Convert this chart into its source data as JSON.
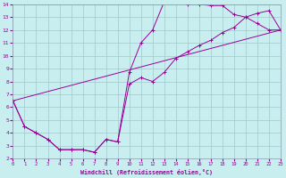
{
  "xlabel": "Windchill (Refroidissement éolien,°C)",
  "xlim": [
    0,
    23
  ],
  "ylim": [
    2,
    14
  ],
  "xticks": [
    0,
    1,
    2,
    3,
    4,
    5,
    6,
    7,
    8,
    9,
    10,
    11,
    12,
    13,
    14,
    15,
    16,
    17,
    18,
    19,
    20,
    21,
    22,
    23
  ],
  "yticks": [
    2,
    3,
    4,
    5,
    6,
    7,
    8,
    9,
    10,
    11,
    12,
    13,
    14
  ],
  "bg_color": "#c8eef0",
  "line_color": "#990099",
  "grid_color": "#a0c8cc",
  "curve1_x": [
    0,
    1,
    2,
    3,
    4,
    5,
    6,
    7,
    8,
    9,
    10,
    11,
    12,
    13,
    14,
    15,
    16,
    17,
    18,
    19,
    20,
    21,
    22,
    23
  ],
  "curve1_y": [
    6.5,
    4.5,
    4.0,
    3.5,
    2.7,
    2.7,
    2.7,
    2.5,
    3.5,
    3.3,
    8.7,
    11.0,
    12.0,
    14.2,
    14.2,
    14.0,
    14.0,
    13.9,
    13.9,
    13.2,
    13.0,
    12.5,
    12.0,
    12.0
  ],
  "curve2_x": [
    0,
    1,
    2,
    3,
    4,
    5,
    6,
    7,
    8,
    9,
    10,
    11,
    12,
    13,
    14,
    15,
    16,
    17,
    18,
    19,
    20,
    21,
    22,
    23
  ],
  "curve2_y": [
    6.5,
    4.5,
    4.0,
    3.5,
    2.7,
    2.7,
    2.7,
    2.5,
    3.5,
    3.3,
    7.8,
    8.3,
    8.0,
    8.7,
    9.8,
    10.3,
    10.8,
    11.2,
    11.8,
    12.2,
    13.0,
    13.3,
    13.5,
    12.0
  ],
  "line_x": [
    0,
    23
  ],
  "line_y": [
    6.5,
    12.0
  ]
}
